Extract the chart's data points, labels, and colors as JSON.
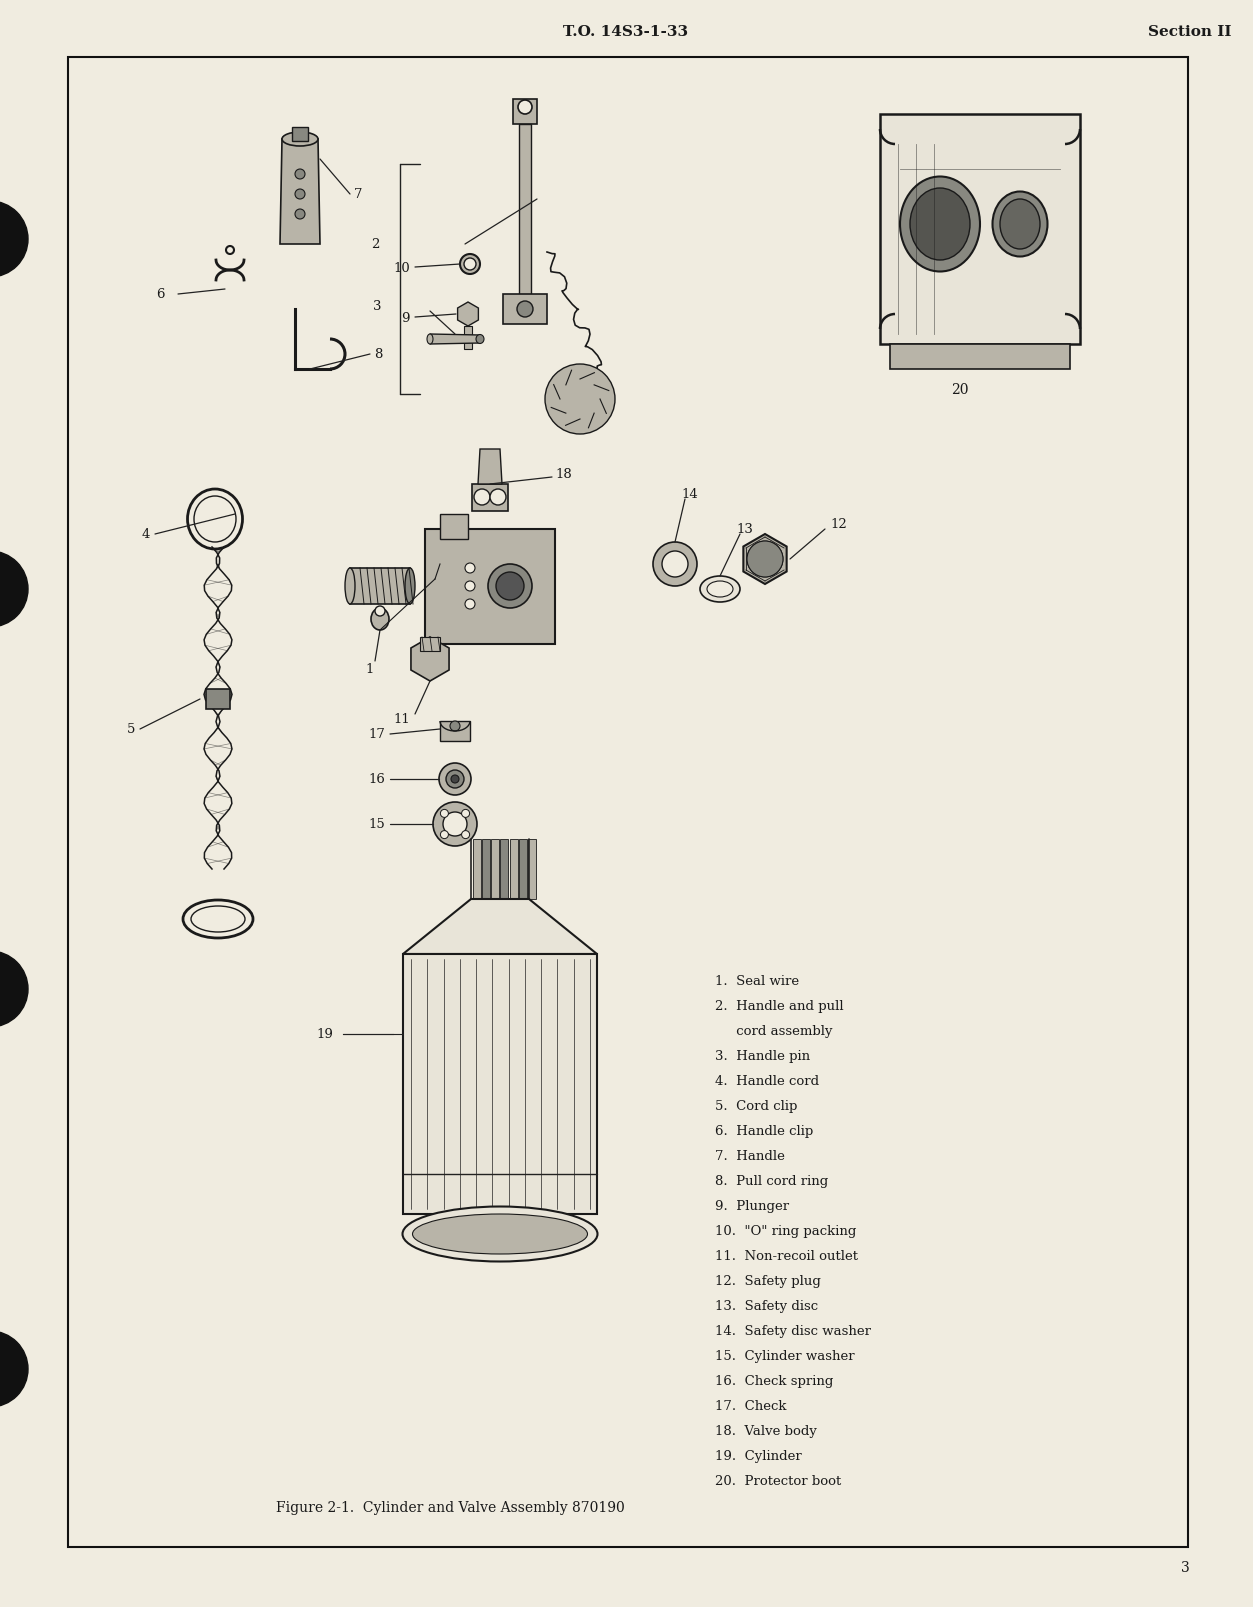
{
  "page_bg": "#f0ece0",
  "border_color": "#111111",
  "header_left": "T.O. 14S3-1-33",
  "header_right": "Section II",
  "footer_caption": "Figure 2-1.  Cylinder and Valve Assembly 870190",
  "page_number": "3",
  "legend_items_col1": [
    "1.  Seal wire",
    "2.  Handle and pull",
    "     cord assembly",
    "3.  Handle pin",
    "4.  Handle cord",
    "5.  Cord clip",
    "6.  Handle clip",
    "7.  Handle",
    "8.  Pull cord ring",
    "9.  Plunger",
    "10.  \"O\" ring packing",
    "11.  Non-recoil outlet",
    "12.  Safety plug",
    "13.  Safety disc",
    "14.  Safety disc washer",
    "15.  Cylinder washer",
    "16.  Check spring",
    "17.  Check",
    "18.  Valve body",
    "19.  Cylinder",
    "20.  Protector boot"
  ],
  "header_fontsize": 11,
  "legend_fontsize": 9.5,
  "caption_fontsize": 10,
  "ink_color": "#1a1a1a",
  "line_color": "#222222",
  "part_fill": "#d8d4c8",
  "part_dark": "#888880",
  "part_mid": "#b8b4a8",
  "part_light": "#e8e4d8"
}
